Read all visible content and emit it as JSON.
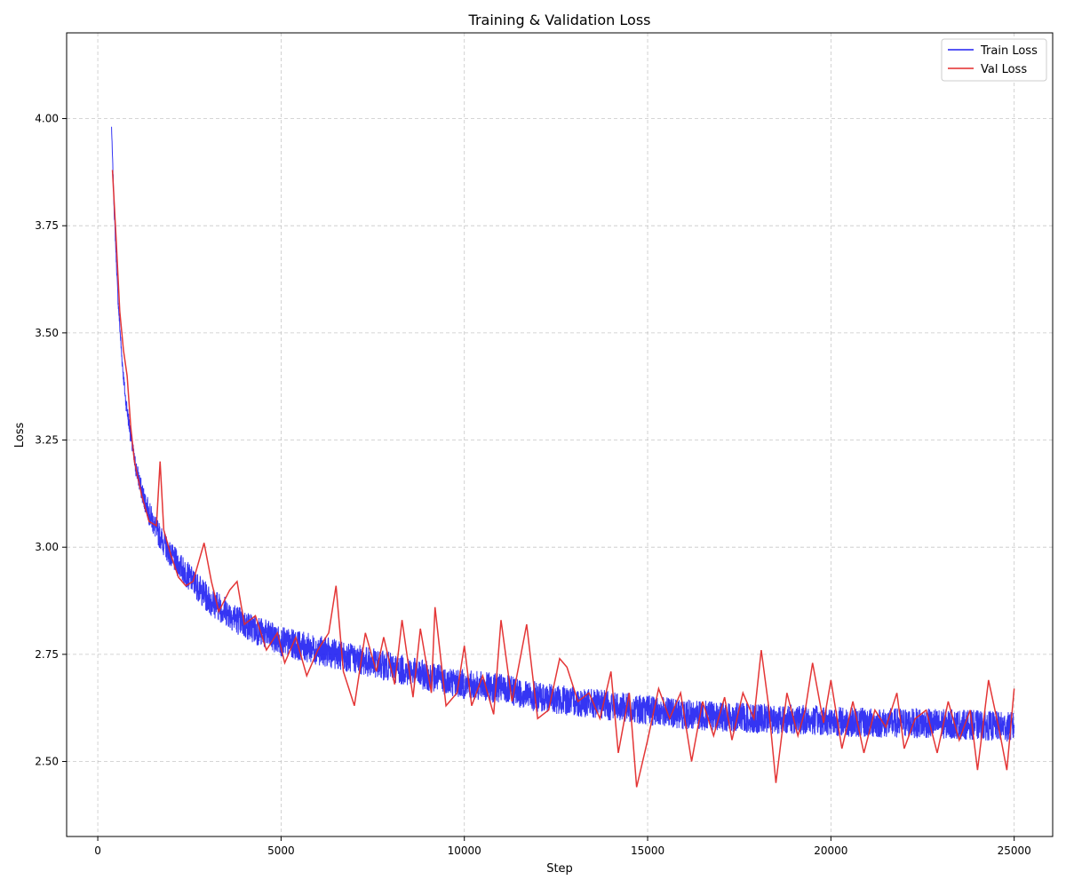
{
  "chart_data": {
    "type": "line",
    "title": "Training & Validation Loss",
    "xlabel": "Step",
    "ylabel": "Loss",
    "xlim": [
      -850,
      26050
    ],
    "ylim": [
      2.325,
      4.2
    ],
    "xticks": [
      0,
      5000,
      10000,
      15000,
      20000,
      25000
    ],
    "yticks": [
      2.5,
      2.75,
      3.0,
      3.25,
      3.5,
      3.75,
      4.0
    ],
    "xtick_labels": [
      "0",
      "5000",
      "10000",
      "15000",
      "20000",
      "25000"
    ],
    "ytick_labels": [
      "2.50",
      "2.75",
      "3.00",
      "3.25",
      "3.50",
      "3.75",
      "4.00"
    ],
    "grid": true,
    "legend_position": "top-right",
    "series": [
      {
        "name": "Train Loss",
        "color": "#1f1ff2",
        "x": [
          375,
          450,
          550,
          650,
          750,
          900,
          1000,
          1200,
          1400,
          1600,
          1800,
          2000,
          2300,
          2600,
          3000,
          3500,
          4000,
          4500,
          5000,
          6000,
          7000,
          8000,
          9000,
          10000,
          11000,
          12000,
          13000,
          14000,
          15000,
          16000,
          17000,
          18000,
          19000,
          20000,
          21000,
          22000,
          23000,
          24000,
          25000
        ],
        "y": [
          3.98,
          3.78,
          3.58,
          3.45,
          3.35,
          3.26,
          3.2,
          3.13,
          3.08,
          3.04,
          3.01,
          2.98,
          2.95,
          2.92,
          2.88,
          2.85,
          2.82,
          2.8,
          2.78,
          2.76,
          2.74,
          2.72,
          2.7,
          2.68,
          2.67,
          2.65,
          2.64,
          2.63,
          2.62,
          2.61,
          2.605,
          2.6,
          2.598,
          2.595,
          2.59,
          2.59,
          2.588,
          2.585,
          2.58
        ],
        "band": [
          0.005,
          0.01,
          0.012,
          0.015,
          0.018,
          0.02,
          0.022,
          0.025,
          0.028,
          0.03,
          0.03,
          0.03,
          0.032,
          0.032,
          0.035,
          0.035,
          0.035,
          0.035,
          0.035,
          0.035,
          0.035,
          0.035,
          0.035,
          0.035,
          0.035,
          0.035,
          0.035,
          0.035,
          0.035,
          0.035,
          0.035,
          0.035,
          0.035,
          0.035,
          0.035,
          0.035,
          0.035,
          0.035,
          0.035
        ]
      },
      {
        "name": "Val Loss",
        "color": "#e32b2b",
        "x": [
          400,
          500,
          600,
          700,
          800,
          900,
          1000,
          1200,
          1400,
          1600,
          1700,
          1800,
          2000,
          2200,
          2400,
          2600,
          2900,
          3100,
          3300,
          3600,
          3800,
          4000,
          4300,
          4600,
          4900,
          5100,
          5400,
          5700,
          6000,
          6300,
          6500,
          6700,
          7000,
          7300,
          7600,
          7800,
          8100,
          8300,
          8600,
          8800,
          9100,
          9200,
          9500,
          9800,
          10000,
          10200,
          10500,
          10800,
          11000,
          11300,
          11700,
          12000,
          12300,
          12600,
          12800,
          13100,
          13400,
          13700,
          14000,
          14200,
          14500,
          14700,
          15000,
          15300,
          15600,
          15900,
          16200,
          16500,
          16800,
          17100,
          17300,
          17600,
          17900,
          18100,
          18300,
          18500,
          18800,
          19100,
          19300,
          19500,
          19800,
          20000,
          20300,
          20600,
          20900,
          21200,
          21500,
          21800,
          22000,
          22300,
          22600,
          22900,
          23200,
          23500,
          23800,
          24000,
          24300,
          24600,
          24800,
          25000
        ],
        "y": [
          3.88,
          3.72,
          3.55,
          3.46,
          3.4,
          3.28,
          3.2,
          3.12,
          3.06,
          3.05,
          3.2,
          3.04,
          2.98,
          2.93,
          2.91,
          2.92,
          3.01,
          2.92,
          2.85,
          2.9,
          2.92,
          2.82,
          2.84,
          2.76,
          2.8,
          2.73,
          2.79,
          2.7,
          2.76,
          2.8,
          2.91,
          2.71,
          2.63,
          2.8,
          2.71,
          2.79,
          2.68,
          2.83,
          2.65,
          2.81,
          2.66,
          2.86,
          2.63,
          2.66,
          2.77,
          2.63,
          2.7,
          2.61,
          2.83,
          2.64,
          2.82,
          2.6,
          2.62,
          2.74,
          2.72,
          2.64,
          2.66,
          2.6,
          2.71,
          2.52,
          2.66,
          2.44,
          2.55,
          2.67,
          2.6,
          2.66,
          2.5,
          2.64,
          2.56,
          2.65,
          2.55,
          2.66,
          2.6,
          2.76,
          2.63,
          2.45,
          2.66,
          2.56,
          2.62,
          2.73,
          2.59,
          2.69,
          2.53,
          2.64,
          2.52,
          2.62,
          2.58,
          2.66,
          2.53,
          2.6,
          2.62,
          2.52,
          2.64,
          2.55,
          2.62,
          2.48,
          2.69,
          2.57,
          2.48,
          2.67
        ]
      }
    ]
  }
}
